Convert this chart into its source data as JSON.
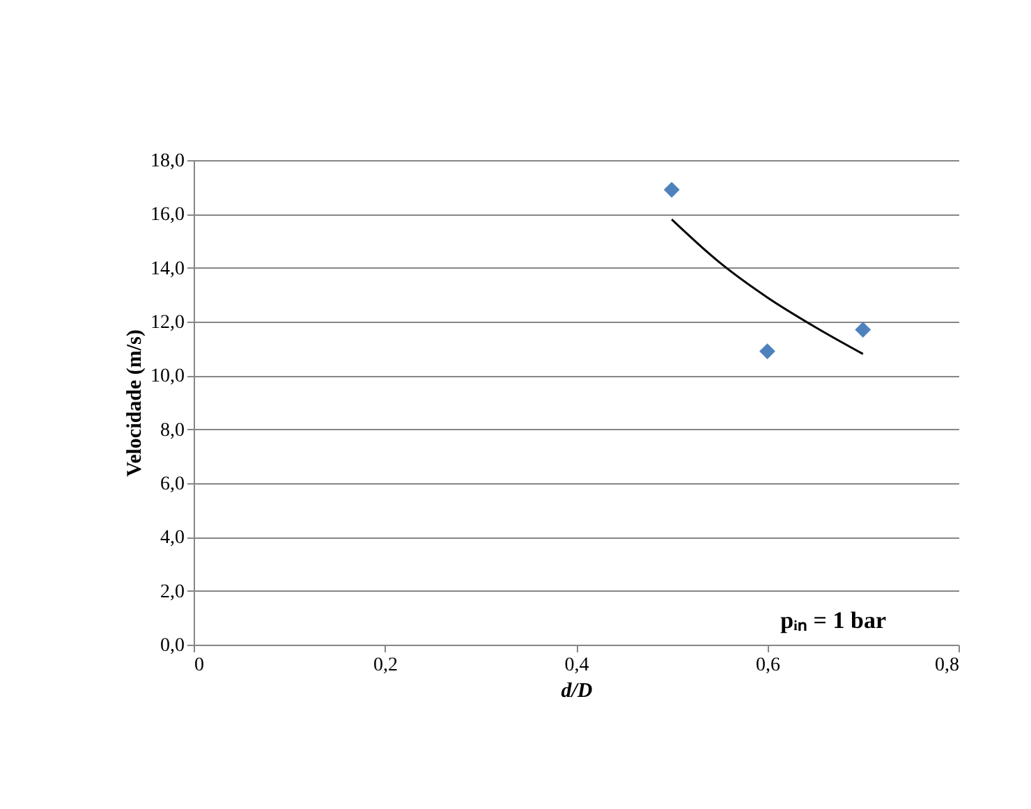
{
  "chart_data": {
    "type": "scatter",
    "xlabel": "d/D",
    "ylabel": "Velocidade (m/s)",
    "xlim": [
      0,
      0.8
    ],
    "ylim": [
      0,
      18
    ],
    "xticks": [
      0,
      {
        "value": 0.2,
        "label": "0,2"
      },
      {
        "value": 0.4,
        "label": "0,4"
      },
      {
        "value": 0.6,
        "label": "0,6"
      },
      {
        "value": 0.8,
        "label": "0,8"
      }
    ],
    "yticks": [
      {
        "value": 0,
        "label": "0,0"
      },
      {
        "value": 2,
        "label": "2,0"
      },
      {
        "value": 4,
        "label": "4,0"
      },
      {
        "value": 6,
        "label": "6,0"
      },
      {
        "value": 8,
        "label": "8,0"
      },
      {
        "value": 10,
        "label": "10,0"
      },
      {
        "value": 12,
        "label": "12,0"
      },
      {
        "value": 14,
        "label": "14,0"
      },
      {
        "value": 16,
        "label": "16,0"
      },
      {
        "value": 18,
        "label": "18,0"
      }
    ],
    "grid": "y",
    "marker": "diamond",
    "series": [
      {
        "color": "#4f81bd",
        "x": [
          0.5,
          0.6,
          0.7
        ],
        "values": [
          16.9,
          10.9,
          11.7
        ]
      },
      {
        "type": "line",
        "color": "#000000",
        "marker": "none",
        "x": [
          0.5,
          0.55,
          0.6,
          0.65,
          0.7
        ],
        "values": [
          15.8,
          14.2,
          12.9,
          11.8,
          10.8
        ]
      }
    ],
    "annotations": [
      "pᵢₙ = 1 bar"
    ]
  }
}
